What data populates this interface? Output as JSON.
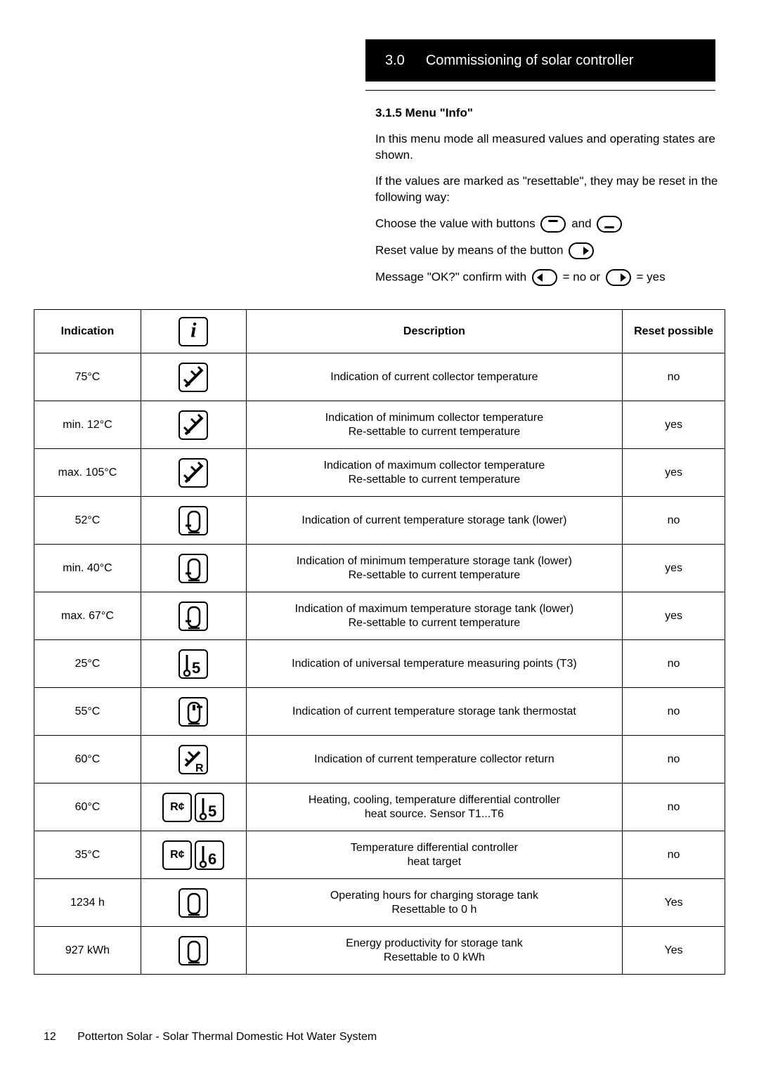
{
  "header": {
    "section_number": "3.0",
    "section_title": "Commissioning of solar controller"
  },
  "intro": {
    "subsection": "3.1.5  Menu \"Info\"",
    "p1": "In this menu mode all measured values and operating states are shown.",
    "p2": "If the values are marked  as \"resettable\", they may be reset in the following way:",
    "line_choose_pre": "Choose the value with buttons ",
    "line_choose_mid": " and ",
    "line_reset": "Reset value by means of the button ",
    "line_ok_pre": "Message \"OK?\" confirm with ",
    "line_ok_mid": " = no or ",
    "line_ok_post": " = yes"
  },
  "table": {
    "headers": {
      "indication": "Indication",
      "description": "Description",
      "reset": "Reset possible"
    },
    "rows": [
      {
        "ind": "75°C",
        "icon": "collector",
        "desc": "Indication of current collector temperature",
        "reset": "no"
      },
      {
        "ind": "min. 12°C",
        "icon": "collector",
        "desc": "Indication of minimum collector temperature\nRe-settable to current temperature",
        "reset": "yes"
      },
      {
        "ind": "max. 105°C",
        "icon": "collector",
        "desc": "Indication of maximum collector temperature\nRe-settable to current temperature",
        "reset": "yes"
      },
      {
        "ind": "52°C",
        "icon": "tank-lower",
        "desc": "Indication of current temperature storage tank (lower)",
        "reset": "no"
      },
      {
        "ind": "min. 40°C",
        "icon": "tank-lower",
        "desc": "Indication of minimum temperature storage tank (lower)\nRe-settable to current temperature",
        "reset": "yes"
      },
      {
        "ind": "max. 67°C",
        "icon": "tank-lower",
        "desc": "Indication of maximum temperature storage tank (lower)\nRe-settable to current temperature",
        "reset": "yes"
      },
      {
        "ind": "25°C",
        "icon": "probe-15",
        "desc": "Indication of universal temperature measuring points (T3)",
        "reset": "no"
      },
      {
        "ind": "55°C",
        "icon": "tank-thermo",
        "desc": "Indication of current temperature storage tank thermostat",
        "reset": "no"
      },
      {
        "ind": "60°C",
        "icon": "collector-return",
        "desc": "Indication of current temperature collector return",
        "reset": "no"
      },
      {
        "ind": "60°C",
        "icon": "r2-probe15",
        "desc": "Heating, cooling, temperature differential controller\nheat source. Sensor T1...T6",
        "reset": "no"
      },
      {
        "ind": "35°C",
        "icon": "r2-probe16",
        "desc": "Temperature differential controller\nheat target",
        "reset": "no"
      },
      {
        "ind": "1234 h",
        "icon": "tank-plain",
        "desc": "Operating hours for charging storage tank\nResettable to 0 h",
        "reset": "Yes"
      },
      {
        "ind": "927 kWh",
        "icon": "tank-plain",
        "desc": "Energy productivity for storage tank\nResettable to 0 kWh",
        "reset": "Yes"
      }
    ]
  },
  "footer": {
    "page": "12",
    "title": "Potterton Solar - Solar Thermal Domestic Hot Water System"
  }
}
